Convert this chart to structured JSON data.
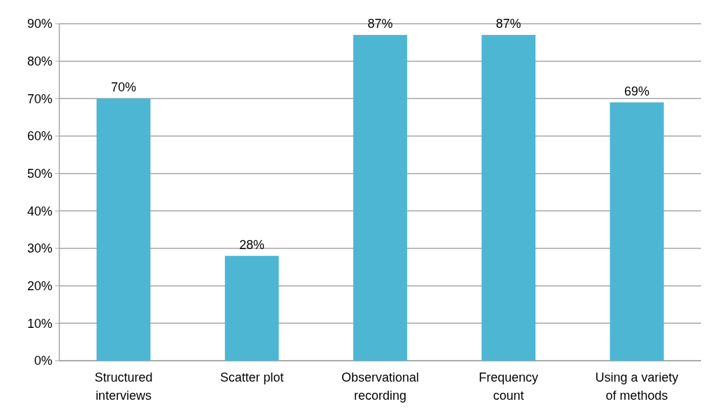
{
  "chart_data": {
    "type": "bar",
    "categories": [
      "Structured interviews",
      "Scatter plot",
      "Observational recording",
      "Frequency count",
      "Using a variety of methods"
    ],
    "values": [
      70,
      28,
      87,
      87,
      69
    ],
    "color": "#4db6d2",
    "value_labels": [
      "70%",
      "28%",
      "87%",
      "87%",
      "69%"
    ],
    "ylim": [
      0,
      90
    ],
    "yticks": [
      {
        "value": 0,
        "label": "0%"
      },
      {
        "value": 10,
        "label": "10%"
      },
      {
        "value": 20,
        "label": "20%"
      },
      {
        "value": 30,
        "label": "30%"
      },
      {
        "value": 40,
        "label": "40%"
      },
      {
        "value": 50,
        "label": "50%"
      },
      {
        "value": 60,
        "label": "60%"
      },
      {
        "value": 70,
        "label": "70%"
      },
      {
        "value": 80,
        "label": "80%"
      },
      {
        "value": 90,
        "label": "90%"
      }
    ],
    "grid": "y"
  }
}
